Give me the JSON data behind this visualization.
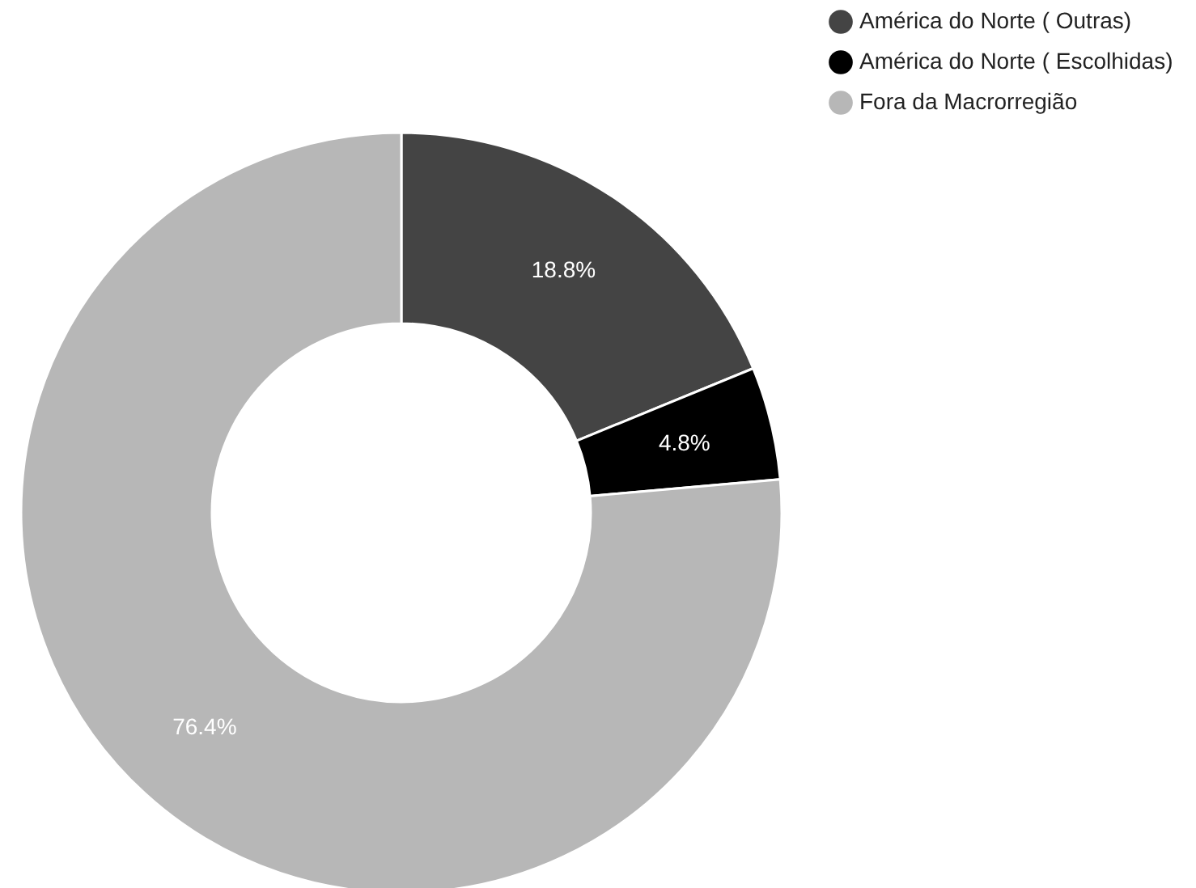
{
  "chart_data": {
    "type": "donut",
    "categories": [
      "América do Norte ( Outras)",
      "América do Norte ( Escolhidas)",
      "Fora da Macrorregião"
    ],
    "values": [
      18.8,
      4.8,
      76.4
    ],
    "colors": [
      "#444444",
      "#000000",
      "#b7b7b7"
    ],
    "value_labels": [
      "18.8%",
      "4.8%",
      "76.4%"
    ],
    "legend": "top right"
  }
}
